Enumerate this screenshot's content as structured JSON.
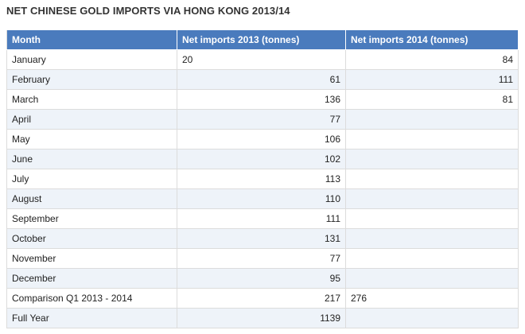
{
  "title": "NET CHINESE GOLD IMPORTS VIA HONG KONG 2013/14",
  "chart_data": {
    "type": "table",
    "columns": [
      "Month",
      "Net imports 2013 (tonnes)",
      "Net imports 2014 (tonnes)"
    ],
    "rows": [
      {
        "label": "January",
        "v2013": "20",
        "v2014": "84",
        "align2013": "left",
        "align2014": "right"
      },
      {
        "label": "February",
        "v2013": "61",
        "v2014": "111",
        "align2013": "right",
        "align2014": "right"
      },
      {
        "label": "March",
        "v2013": "136",
        "v2014": "81",
        "align2013": "right",
        "align2014": "right"
      },
      {
        "label": "April",
        "v2013": "77",
        "v2014": "",
        "align2013": "right",
        "align2014": "right"
      },
      {
        "label": "May",
        "v2013": "106",
        "v2014": "",
        "align2013": "right",
        "align2014": "right"
      },
      {
        "label": "June",
        "v2013": "102",
        "v2014": "",
        "align2013": "right",
        "align2014": "right"
      },
      {
        "label": "July",
        "v2013": "113",
        "v2014": "",
        "align2013": "right",
        "align2014": "right"
      },
      {
        "label": "August",
        "v2013": "110",
        "v2014": "",
        "align2013": "right",
        "align2014": "right"
      },
      {
        "label": "September",
        "v2013": "111",
        "v2014": "",
        "align2013": "right",
        "align2014": "right"
      },
      {
        "label": "October",
        "v2013": "131",
        "v2014": "",
        "align2013": "right",
        "align2014": "right"
      },
      {
        "label": "November",
        "v2013": "77",
        "v2014": "",
        "align2013": "right",
        "align2014": "right"
      },
      {
        "label": "December",
        "v2013": "95",
        "v2014": "",
        "align2013": "right",
        "align2014": "right"
      },
      {
        "label": "Comparison Q1 2013 - 2014",
        "v2013": "217",
        "v2014": "276",
        "align2013": "right",
        "align2014": "left"
      },
      {
        "label": "Full Year",
        "v2013": "1139",
        "v2014": "",
        "align2013": "right",
        "align2014": "right"
      }
    ]
  },
  "colors": {
    "header_bg": "#4a7bbd",
    "header_text": "#ffffff",
    "row_alt_bg": "#eef3f9",
    "border": "#dcdcdc"
  }
}
